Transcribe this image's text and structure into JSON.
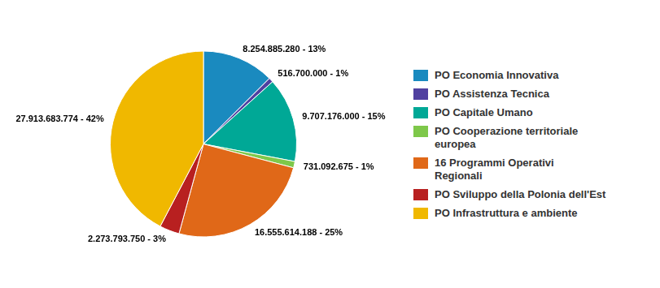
{
  "chart_data": {
    "type": "pie",
    "categories": [
      "PO Economia Innovativa",
      "PO Assistenza Tecnica",
      "PO Capitale Umano",
      "PO Cooperazione territoriale\neuropea",
      "16 Programmi Operativi\nRegionali",
      "PO Sviluppo della Polonia dell'Est",
      "PO Infrastruttura e ambiente"
    ],
    "values": [
      8254885280,
      516700000,
      9707176000,
      731092675,
      16555614188,
      2273793750,
      27913683774
    ],
    "value_labels": [
      "8.254.885.280 - 13%",
      "516.700.000 - 1%",
      "9.707.176.000 - 15%",
      "731.092.675 - 1%",
      "16.555.614.188 - 25%",
      "2.273.793.750 - 3%",
      "27.913.683.774 - 42%"
    ],
    "colors": [
      "#1a8abf",
      "#5040a0",
      "#00a896",
      "#7ec84a",
      "#e06818",
      "#b82020",
      "#f0b800"
    ],
    "data_labels": true,
    "legend": "right"
  }
}
